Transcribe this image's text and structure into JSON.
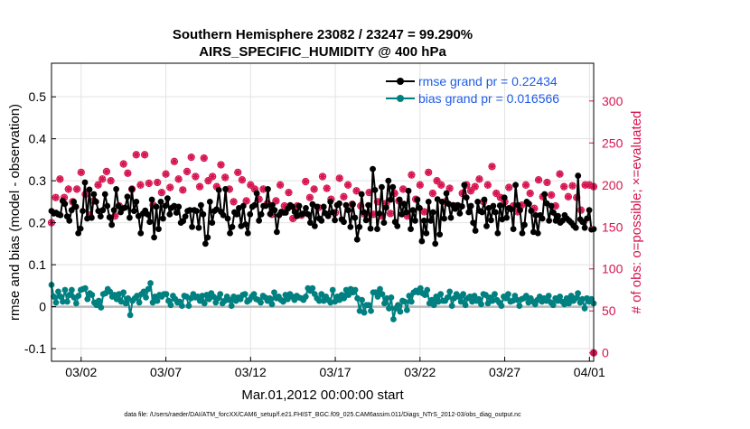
{
  "chart_data": {
    "type": "line",
    "title_line1": "Southern Hemisphere 23082 / 23247 = 99.290%",
    "title_line2": "AIRS_SPECIFIC_HUMIDITY @ 400 hPa",
    "xlabel": "Mar.01,2012 00:00:00 start",
    "ylabel_left": "rmse and bias (model - observation)",
    "ylabel_right": "# of obs: o=possible; ×=evaluated",
    "footnote": "data file: /Users/raeder/DAI/ATM_forcXX/CAM6_setup/f.e21.FHIST_BGC.f09_025.CAM6assim.011/Diags_NTrS_2012-03/obs_diag_output.nc",
    "x_range_days": [
      -0.75,
      31.25
    ],
    "ylim_left": [
      -0.13,
      0.58
    ],
    "ylim_right": [
      -10,
      345
    ],
    "x_ticks": [
      {
        "day": 1,
        "label": "03/02"
      },
      {
        "day": 6,
        "label": "03/07"
      },
      {
        "day": 11,
        "label": "03/12"
      },
      {
        "day": 16,
        "label": "03/17"
      },
      {
        "day": 21,
        "label": "03/22"
      },
      {
        "day": 26,
        "label": "03/27"
      },
      {
        "day": 31,
        "label": "04/01"
      }
    ],
    "y_ticks_left": [
      {
        "value": -0.1,
        "label": "-0.1"
      },
      {
        "value": 0,
        "label": "0"
      },
      {
        "value": 0.1,
        "label": "0.1"
      },
      {
        "value": 0.2,
        "label": "0.2"
      },
      {
        "value": 0.3,
        "label": "0.3"
      },
      {
        "value": 0.4,
        "label": "0.4"
      },
      {
        "value": 0.5,
        "label": "0.5"
      }
    ],
    "y_ticks_right": [
      {
        "value": 0,
        "label": "0"
      },
      {
        "value": 50,
        "label": "50"
      },
      {
        "value": 100,
        "label": "100"
      },
      {
        "value": 150,
        "label": "150"
      },
      {
        "value": 200,
        "label": "200"
      },
      {
        "value": 250,
        "label": "250"
      },
      {
        "value": 300,
        "label": "300"
      }
    ],
    "legend_position": "top-right",
    "series": [
      {
        "name": "rmse grand pr = 0.22434",
        "color": "#000000",
        "axis": "left",
        "values": [
          0.228,
          0.222,
          0.224,
          0.22,
          0.218,
          0.252,
          0.245,
          0.215,
          0.205,
          0.23,
          0.25,
          0.238,
          0.175,
          0.186,
          0.228,
          0.296,
          0.21,
          0.279,
          0.212,
          0.268,
          0.25,
          0.228,
          0.215,
          0.23,
          0.268,
          0.24,
          0.213,
          0.195,
          0.23,
          0.28,
          0.24,
          0.225,
          0.234,
          0.236,
          0.262,
          0.212,
          0.28,
          0.228,
          0.25,
          0.216,
          0.175,
          0.222,
          0.229,
          0.22,
          0.202,
          0.255,
          0.165,
          0.238,
          0.185,
          0.25,
          0.21,
          0.24,
          0.258,
          0.22,
          0.236,
          0.24,
          0.224,
          0.238,
          0.2,
          0.204,
          0.215,
          0.228,
          0.23,
          0.19,
          0.23,
          0.228,
          0.188,
          0.242,
          0.22,
          0.15,
          0.165,
          0.25,
          0.2,
          0.228,
          0.232,
          0.278,
          0.226,
          0.218,
          0.28,
          0.21,
          0.175,
          0.19,
          0.225,
          0.22,
          0.235,
          0.192,
          0.24,
          0.196,
          0.175,
          0.22,
          0.238,
          0.242,
          0.27,
          0.205,
          0.22,
          0.24,
          0.24,
          0.28,
          0.221,
          0.242,
          0.23,
          0.178,
          0.218,
          0.226,
          0.224,
          0.224,
          0.234,
          0.242,
          0.238,
          0.226,
          0.216,
          0.24,
          0.22,
          0.222,
          0.235,
          0.22,
          0.2,
          0.244,
          0.192,
          0.238,
          0.21,
          0.205,
          0.238,
          0.222,
          0.216,
          0.25,
          0.225,
          0.206,
          0.242,
          0.246,
          0.208,
          0.202,
          0.242,
          0.23,
          0.19,
          0.244,
          0.212,
          0.16,
          0.19,
          0.268,
          0.225,
          0.206,
          0.242,
          0.186,
          0.328,
          0.278,
          0.185,
          0.222,
          0.285,
          0.2,
          0.236,
          0.3,
          0.255,
          0.285,
          0.202,
          0.192,
          0.255,
          0.22,
          0.245,
          0.225,
          0.276,
          0.185,
          0.23,
          0.205,
          0.255,
          0.235,
          0.156,
          0.205,
          0.175,
          0.25,
          0.205,
          0.225,
          0.15,
          0.256,
          0.172,
          0.25,
          0.21,
          0.27,
          0.245,
          0.212,
          0.242,
          0.233,
          0.242,
          0.222,
          0.239,
          0.29,
          0.26,
          0.225,
          0.24,
          0.2,
          0.181,
          0.25,
          0.228,
          0.225,
          0.255,
          0.192,
          0.235,
          0.206,
          0.24,
          0.225,
          0.175,
          0.241,
          0.208,
          0.26,
          0.212,
          0.235,
          0.232,
          0.185,
          0.29,
          0.242,
          0.23,
          0.175,
          0.195,
          0.25,
          0.245,
          0.228,
          0.178,
          0.218,
          0.175,
          0.218,
          0.21,
          0.268,
          0.246,
          0.205,
          0.24,
          0.224,
          0.205,
          0.216,
          0.2,
          0.205,
          0.218,
          0.21,
          0.205,
          0.2,
          0.193,
          0.188,
          0.312,
          0.208,
          0.202,
          0.188,
          0.21,
          0.23,
          0.184,
          0.185
        ]
      },
      {
        "name": "bias grand pr = 0.016566",
        "color": "#008080",
        "axis": "left",
        "values": [
          0.052,
          0.024,
          0.01,
          0.036,
          0.024,
          0.012,
          0.04,
          0.012,
          0.028,
          0.04,
          0.022,
          0.008,
          0.026,
          0.04,
          0.042,
          0.044,
          0.018,
          0.032,
          0.028,
          0.01,
          0.004,
          0.014,
          -0.002,
          0.03,
          0.032,
          0.042,
          0.036,
          0.024,
          0.028,
          0.018,
          0.03,
          0.012,
          0.034,
          0.008,
          0.02,
          -0.02,
          0.014,
          0.02,
          0.026,
          0.01,
          0.03,
          0.036,
          0.022,
          0.042,
          0.056,
          0.01,
          0.024,
          0.014,
          0.028,
          0.024,
          0.03,
          0.03,
          0.014,
          0.004,
          0.026,
          0.018,
          0.01,
          0.012,
          0.002,
          0.026,
          0.024,
          0.002,
          0.02,
          0.03,
          0.022,
          0.024,
          0.014,
          0.026,
          0.008,
          0.028,
          0.018,
          0.032,
          0.024,
          0.01,
          0.02,
          0.03,
          0.008,
          0.014,
          0.024,
          0.016,
          0.002,
          0.024,
          0.014,
          0.022,
          0.018,
          0.028,
          0.03,
          0.012,
          0.016,
          0.024,
          0.03,
          0.018,
          0.016,
          0.01,
          0.026,
          0.022,
          0.014,
          0.02,
          0.006,
          0.034,
          0.02,
          0.024,
          0.016,
          0.012,
          0.028,
          0.018,
          0.03,
          0.024,
          0.016,
          0.026,
          0.022,
          0.02,
          0.016,
          0.024,
          0.044,
          0.038,
          0.044,
          0.03,
          0.02,
          0.014,
          0.03,
          0.014,
          0.024,
          0.016,
          0.01,
          0.04,
          0.012,
          0.024,
          0.016,
          0.028,
          0.02,
          0.04,
          0.028,
          0.042,
          0.034,
          0.04,
          0.02,
          -0.01,
          0.016,
          -0.014,
          0.004,
          0.004,
          -0.01,
          0.034,
          0.034,
          0.024,
          0.042,
          0.03,
          0.008,
          0.02,
          -0.004,
          0.022,
          -0.03,
          -0.004,
          0.004,
          -0.012,
          0.014,
          0.012,
          -0.008,
          0.026,
          0.012,
          0.034,
          0.038,
          0.034,
          0.044,
          0.032,
          0.028,
          0.04,
          0.008,
          0.016,
          0.004,
          0.024,
          0.012,
          0.03,
          0.014,
          0.014,
          0.022,
          0.036,
          0.002,
          0.02,
          0.03,
          0.024,
          0.012,
          0.03,
          0.004,
          0.02,
          0.024,
          0.012,
          0.026,
          0.014,
          0.018,
          0.006,
          0.03,
          0.028,
          0.008,
          0.022,
          0.014,
          0.03,
          0.016,
          0.01,
          0.002,
          0.024,
          0.02,
          0.03,
          0.012,
          0.014,
          0.026,
          0.016,
          0.002,
          0.018,
          0.02,
          0.026,
          0.01,
          0.02,
          0.012,
          0.006,
          0.016,
          0.024,
          0.012,
          0.02,
          0.014,
          0.026,
          0.01,
          0.004,
          0.02,
          0.014,
          0.024,
          0.012,
          0.006,
          0.02,
          0.008,
          0.026,
          0.014,
          0.02,
          0.032,
          0.01,
          0.018,
          -0.004,
          0.02,
          0.012,
          0.018,
          0.008
        ]
      }
    ],
    "obs_series": [
      {
        "name": "possible",
        "marker": "circle",
        "color": "#d6144f",
        "axis": "right"
      },
      {
        "name": "evaluated",
        "marker": "star",
        "color": "#d6144f",
        "axis": "right"
      }
    ],
    "obs_points": [
      {
        "day": -0.75,
        "value": 155
      },
      {
        "day": -0.5,
        "value": 185
      },
      {
        "day": -0.25,
        "value": 207
      },
      {
        "day": 0,
        "value": 185
      },
      {
        "day": 0.25,
        "value": 195
      },
      {
        "day": 0.5,
        "value": 180
      },
      {
        "day": 0.75,
        "value": 195
      },
      {
        "day": 1,
        "value": 215
      },
      {
        "day": 1.25,
        "value": 189
      },
      {
        "day": 1.5,
        "value": 164
      },
      {
        "day": 1.75,
        "value": 181
      },
      {
        "day": 2,
        "value": 200
      },
      {
        "day": 2.25,
        "value": 207
      },
      {
        "day": 2.5,
        "value": 216
      },
      {
        "day": 2.75,
        "value": 205
      },
      {
        "day": 3,
        "value": 163
      },
      {
        "day": 3.25,
        "value": 175
      },
      {
        "day": 3.5,
        "value": 225
      },
      {
        "day": 3.75,
        "value": 214
      },
      {
        "day": 4,
        "value": 195
      },
      {
        "day": 4.25,
        "value": 236
      },
      {
        "day": 4.5,
        "value": 200
      },
      {
        "day": 4.75,
        "value": 236
      },
      {
        "day": 5,
        "value": 202
      },
      {
        "day": 5.25,
        "value": 176
      },
      {
        "day": 5.5,
        "value": 203
      },
      {
        "day": 5.75,
        "value": 191
      },
      {
        "day": 6,
        "value": 213
      },
      {
        "day": 6.25,
        "value": 197
      },
      {
        "day": 6.5,
        "value": 228
      },
      {
        "day": 6.75,
        "value": 207
      },
      {
        "day": 7,
        "value": 194
      },
      {
        "day": 7.25,
        "value": 216
      },
      {
        "day": 7.5,
        "value": 233
      },
      {
        "day": 7.75,
        "value": 210
      },
      {
        "day": 8,
        "value": 198
      },
      {
        "day": 8.25,
        "value": 232
      },
      {
        "day": 8.5,
        "value": 205
      },
      {
        "day": 8.75,
        "value": 210
      },
      {
        "day": 9,
        "value": 198
      },
      {
        "day": 9.25,
        "value": 224
      },
      {
        "day": 9.5,
        "value": 209
      },
      {
        "day": 9.75,
        "value": 195
      },
      {
        "day": 10,
        "value": 180
      },
      {
        "day": 10.25,
        "value": 215
      },
      {
        "day": 10.5,
        "value": 206
      },
      {
        "day": 10.75,
        "value": 181
      },
      {
        "day": 11,
        "value": 200
      },
      {
        "day": 11.25,
        "value": 195
      },
      {
        "day": 11.5,
        "value": 183
      },
      {
        "day": 11.75,
        "value": 195
      },
      {
        "day": 12,
        "value": 178
      },
      {
        "day": 12.25,
        "value": 165
      },
      {
        "day": 12.5,
        "value": 181
      },
      {
        "day": 12.75,
        "value": 200
      },
      {
        "day": 13,
        "value": 175
      },
      {
        "day": 13.25,
        "value": 191
      },
      {
        "day": 13.5,
        "value": 160
      },
      {
        "day": 13.75,
        "value": 175
      },
      {
        "day": 14,
        "value": 164
      },
      {
        "day": 14.25,
        "value": 204
      },
      {
        "day": 14.5,
        "value": 185
      },
      {
        "day": 14.75,
        "value": 195
      },
      {
        "day": 15,
        "value": 173
      },
      {
        "day": 15.25,
        "value": 210
      },
      {
        "day": 15.5,
        "value": 196
      },
      {
        "day": 15.75,
        "value": 183
      },
      {
        "day": 16,
        "value": 167
      },
      {
        "day": 16.25,
        "value": 208
      },
      {
        "day": 16.5,
        "value": 186
      },
      {
        "day": 16.75,
        "value": 200
      },
      {
        "day": 17,
        "value": 177
      },
      {
        "day": 17.25,
        "value": 193
      },
      {
        "day": 17.5,
        "value": 175
      },
      {
        "day": 17.75,
        "value": 165
      },
      {
        "day": 18,
        "value": 191
      },
      {
        "day": 18.25,
        "value": 165
      },
      {
        "day": 18.5,
        "value": 180
      },
      {
        "day": 18.75,
        "value": 163
      },
      {
        "day": 19,
        "value": 178
      },
      {
        "day": 19.25,
        "value": 166
      },
      {
        "day": 19.5,
        "value": 190
      },
      {
        "day": 19.75,
        "value": 181
      },
      {
        "day": 20,
        "value": 195
      },
      {
        "day": 20.25,
        "value": 163
      },
      {
        "day": 20.5,
        "value": 212
      },
      {
        "day": 20.75,
        "value": 183
      },
      {
        "day": 21,
        "value": 200
      },
      {
        "day": 21.25,
        "value": 168
      },
      {
        "day": 21.5,
        "value": 215
      },
      {
        "day": 21.75,
        "value": 190
      },
      {
        "day": 22,
        "value": 205
      },
      {
        "day": 22.25,
        "value": 200
      },
      {
        "day": 22.5,
        "value": 180
      },
      {
        "day": 22.75,
        "value": 196
      },
      {
        "day": 23,
        "value": 175
      },
      {
        "day": 23.25,
        "value": 175
      },
      {
        "day": 23.5,
        "value": 190
      },
      {
        "day": 23.75,
        "value": 200
      },
      {
        "day": 24,
        "value": 193
      },
      {
        "day": 24.25,
        "value": 198
      },
      {
        "day": 24.5,
        "value": 207
      },
      {
        "day": 24.75,
        "value": 180
      },
      {
        "day": 25,
        "value": 200
      },
      {
        "day": 25.25,
        "value": 222
      },
      {
        "day": 25.5,
        "value": 190
      },
      {
        "day": 25.75,
        "value": 185
      },
      {
        "day": 26,
        "value": 180
      },
      {
        "day": 26.25,
        "value": 197
      },
      {
        "day": 26.5,
        "value": 175
      },
      {
        "day": 26.75,
        "value": 168
      },
      {
        "day": 27,
        "value": 176
      },
      {
        "day": 27.25,
        "value": 200
      },
      {
        "day": 27.5,
        "value": 190
      },
      {
        "day": 27.75,
        "value": 172
      },
      {
        "day": 28,
        "value": 206
      },
      {
        "day": 28.25,
        "value": 186
      },
      {
        "day": 28.5,
        "value": 203
      },
      {
        "day": 28.75,
        "value": 188
      },
      {
        "day": 29,
        "value": 175
      },
      {
        "day": 29.25,
        "value": 213
      },
      {
        "day": 29.5,
        "value": 198
      },
      {
        "day": 29.75,
        "value": 186
      },
      {
        "day": 30,
        "value": 199
      },
      {
        "day": 30.25,
        "value": 185
      },
      {
        "day": 30.5,
        "value": 170
      },
      {
        "day": 30.75,
        "value": 200
      },
      {
        "day": 31,
        "value": 200
      },
      {
        "day": 31.25,
        "value": 198
      }
    ],
    "end_marker": {
      "day": 31.25,
      "value": 0
    }
  },
  "colors": {
    "grid": "#e2e2e2",
    "zero_line": "#b8b8b8",
    "right_axis": "#d6144f",
    "legend_text": "#1f5ce6"
  }
}
